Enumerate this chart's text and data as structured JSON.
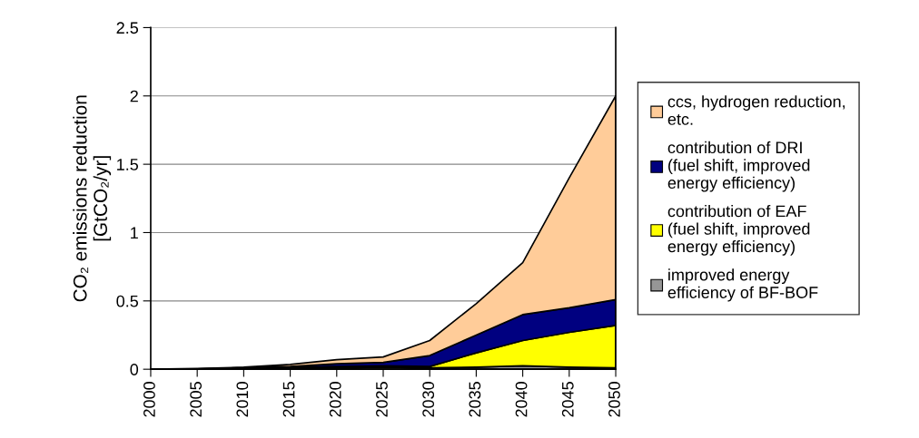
{
  "chart_data": {
    "type": "area",
    "stacked": true,
    "ylabel": "CO₂ emissions reduction\n[GtCO₂/yr]",
    "categories": [
      "2000",
      "2005",
      "2010",
      "2015",
      "2020",
      "2025",
      "2030",
      "2035",
      "2040",
      "2045",
      "2050"
    ],
    "series": [
      {
        "name": "improved energy efficiency of BF-BOF",
        "color": "#969696",
        "values": [
          0,
          0.002,
          0.005,
          0.008,
          0.01,
          0.015,
          0.01,
          0.015,
          0.025,
          0.015,
          0.01
        ]
      },
      {
        "name": "contribution of EAF (fuel shift, improved energy efficiency)",
        "color": "#ffff00",
        "values": [
          0,
          0,
          0.001,
          0.004,
          0.01,
          0.01,
          0.01,
          0.105,
          0.185,
          0.255,
          0.31
        ]
      },
      {
        "name": "contribution of DRI (fuel shift, improved energy efficiency)",
        "color": "#000080",
        "values": [
          0,
          0.001,
          0.004,
          0.008,
          0.02,
          0.025,
          0.08,
          0.13,
          0.19,
          0.18,
          0.19
        ]
      },
      {
        "name": "ccs, hydrogen reduction, etc.",
        "color": "#ffcc99",
        "values": [
          0,
          0.002,
          0.005,
          0.015,
          0.03,
          0.04,
          0.11,
          0.23,
          0.38,
          0.95,
          1.49
        ]
      }
    ],
    "ylim": [
      0,
      2.5
    ],
    "yticks": [
      0,
      0.5,
      1,
      1.5,
      2,
      2.5
    ],
    "grid": "y",
    "legend": "right"
  }
}
